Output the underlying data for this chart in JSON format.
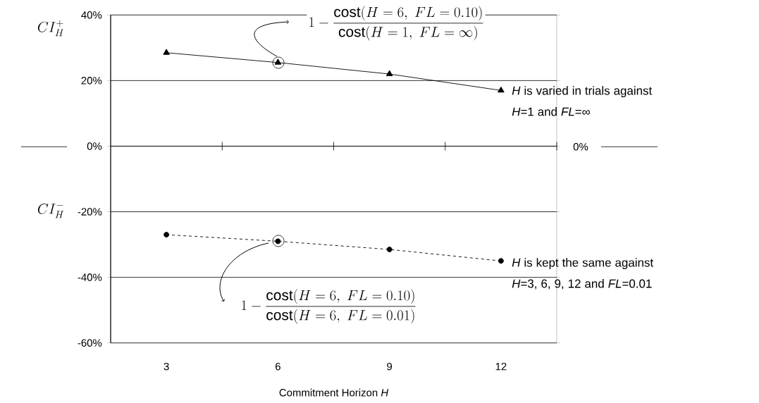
{
  "chart_data": {
    "type": "line",
    "categories": [
      "3",
      "6",
      "9",
      "12"
    ],
    "series": [
      {
        "color": "#000000",
        "values": [
          28.5,
          25.5,
          22,
          17
        ],
        "marker": "triangle",
        "line_style": "solid"
      },
      {
        "color": "#000000",
        "values": [
          -27,
          -29,
          -31.5,
          -35
        ],
        "marker": "circle",
        "line_style": "dashed"
      }
    ],
    "ylim": [
      -60,
      40
    ],
    "yticks": [
      {
        "value": 40,
        "label": "40%"
      },
      {
        "value": 20,
        "label": "20%"
      },
      {
        "value": 0,
        "label": "0%"
      },
      {
        "value": -20,
        "label": "-20%"
      },
      {
        "value": -40,
        "label": "-40%"
      },
      {
        "value": -60,
        "label": "-60%"
      }
    ],
    "xlabel": "Commitment Horizon *H*",
    "grid": "y",
    "annotations": [
      "1-\\frac{\\mathrm{cost}(H=6,\\ FL=0.10)}{\\mathrm{cost}(H=1,\\ FL=\\infty)}",
      "*H* is varied in trials against *H*=1 and *FL*=∞",
      "1-\\frac{\\mathrm{cost}(H=6,\\ FL=0.10)}{\\mathrm{cost}(H=6,\\ FL=0.01)}",
      "*H* is kept the same against *H*=3, 6, 9, 12 and *FL*=0.01",
      "0%",
      "CI_H^{+}",
      "CI_H^{-}"
    ]
  }
}
